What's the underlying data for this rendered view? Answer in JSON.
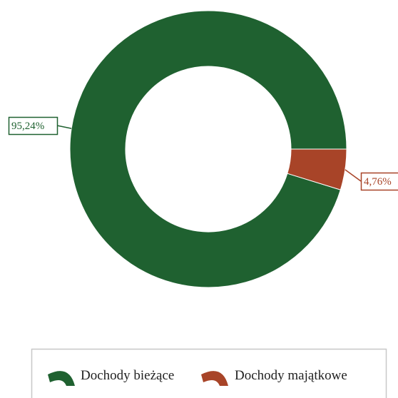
{
  "chart_data": {
    "type": "pie",
    "donut": true,
    "title": "",
    "legend_position": "bottom",
    "slices": [
      {
        "label": "Dochody bieżące",
        "value": 95.24,
        "display": "95,24%",
        "color": "#1f6130"
      },
      {
        "label": "Dochody majątkowe",
        "value": 4.76,
        "display": "4,76%",
        "color": "#a84428"
      }
    ]
  }
}
